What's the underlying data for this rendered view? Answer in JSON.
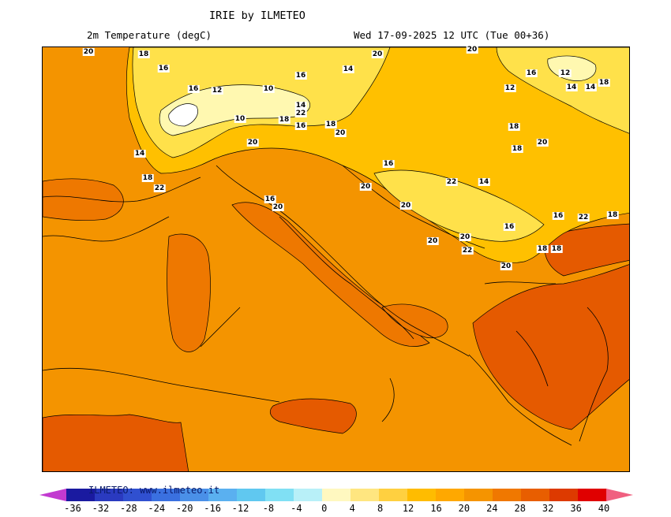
{
  "header": {
    "title": "IRIE by ILMETEO",
    "subtitle": "2m Temperature (degC)",
    "valid_time": "Wed 17-09-2025 12 UTC (Tue 00+36)"
  },
  "map": {
    "contour_labels": [
      "20",
      "18",
      "16",
      "16",
      "12",
      "10",
      "16",
      "14",
      "20",
      "20",
      "16",
      "12",
      "14",
      "16",
      "18",
      "12",
      "14",
      "22",
      "16",
      "18",
      "20",
      "10",
      "18",
      "14",
      "18",
      "22",
      "16",
      "20",
      "20",
      "16",
      "20",
      "20",
      "22",
      "14",
      "18",
      "20",
      "16",
      "22",
      "18",
      "20",
      "20",
      "22",
      "16",
      "18",
      "18",
      "20",
      "18",
      "12",
      "14"
    ],
    "colors": {
      "base": "#f49400",
      "warm": "#ee7800",
      "hot": "#e55a00",
      "cool": "#ffc000",
      "cooler": "#ffe14a",
      "cold": "#fff8b0",
      "coldest": "#ffffff"
    }
  },
  "legend": {
    "colors": [
      "#c23ad0",
      "#1a1aa0",
      "#2a3ac0",
      "#3050d0",
      "#3a70e0",
      "#4a90e8",
      "#5ab0f0",
      "#60c8f0",
      "#80e0f4",
      "#b8f0f8",
      "#fff8c0",
      "#ffe680",
      "#ffd040",
      "#ffbc00",
      "#ffa800",
      "#f59400",
      "#f07800",
      "#e85e00",
      "#dd3a00",
      "#e00000",
      "#f06080"
    ],
    "ticks": [
      "-36",
      "-32",
      "-28",
      "-24",
      "-20",
      "-16",
      "-12",
      "-8",
      "-4",
      "0",
      "4",
      "8",
      "12",
      "16",
      "20",
      "24",
      "28",
      "32",
      "36",
      "40"
    ],
    "credit": "ILMETEO: www.ilmeteo.it"
  }
}
